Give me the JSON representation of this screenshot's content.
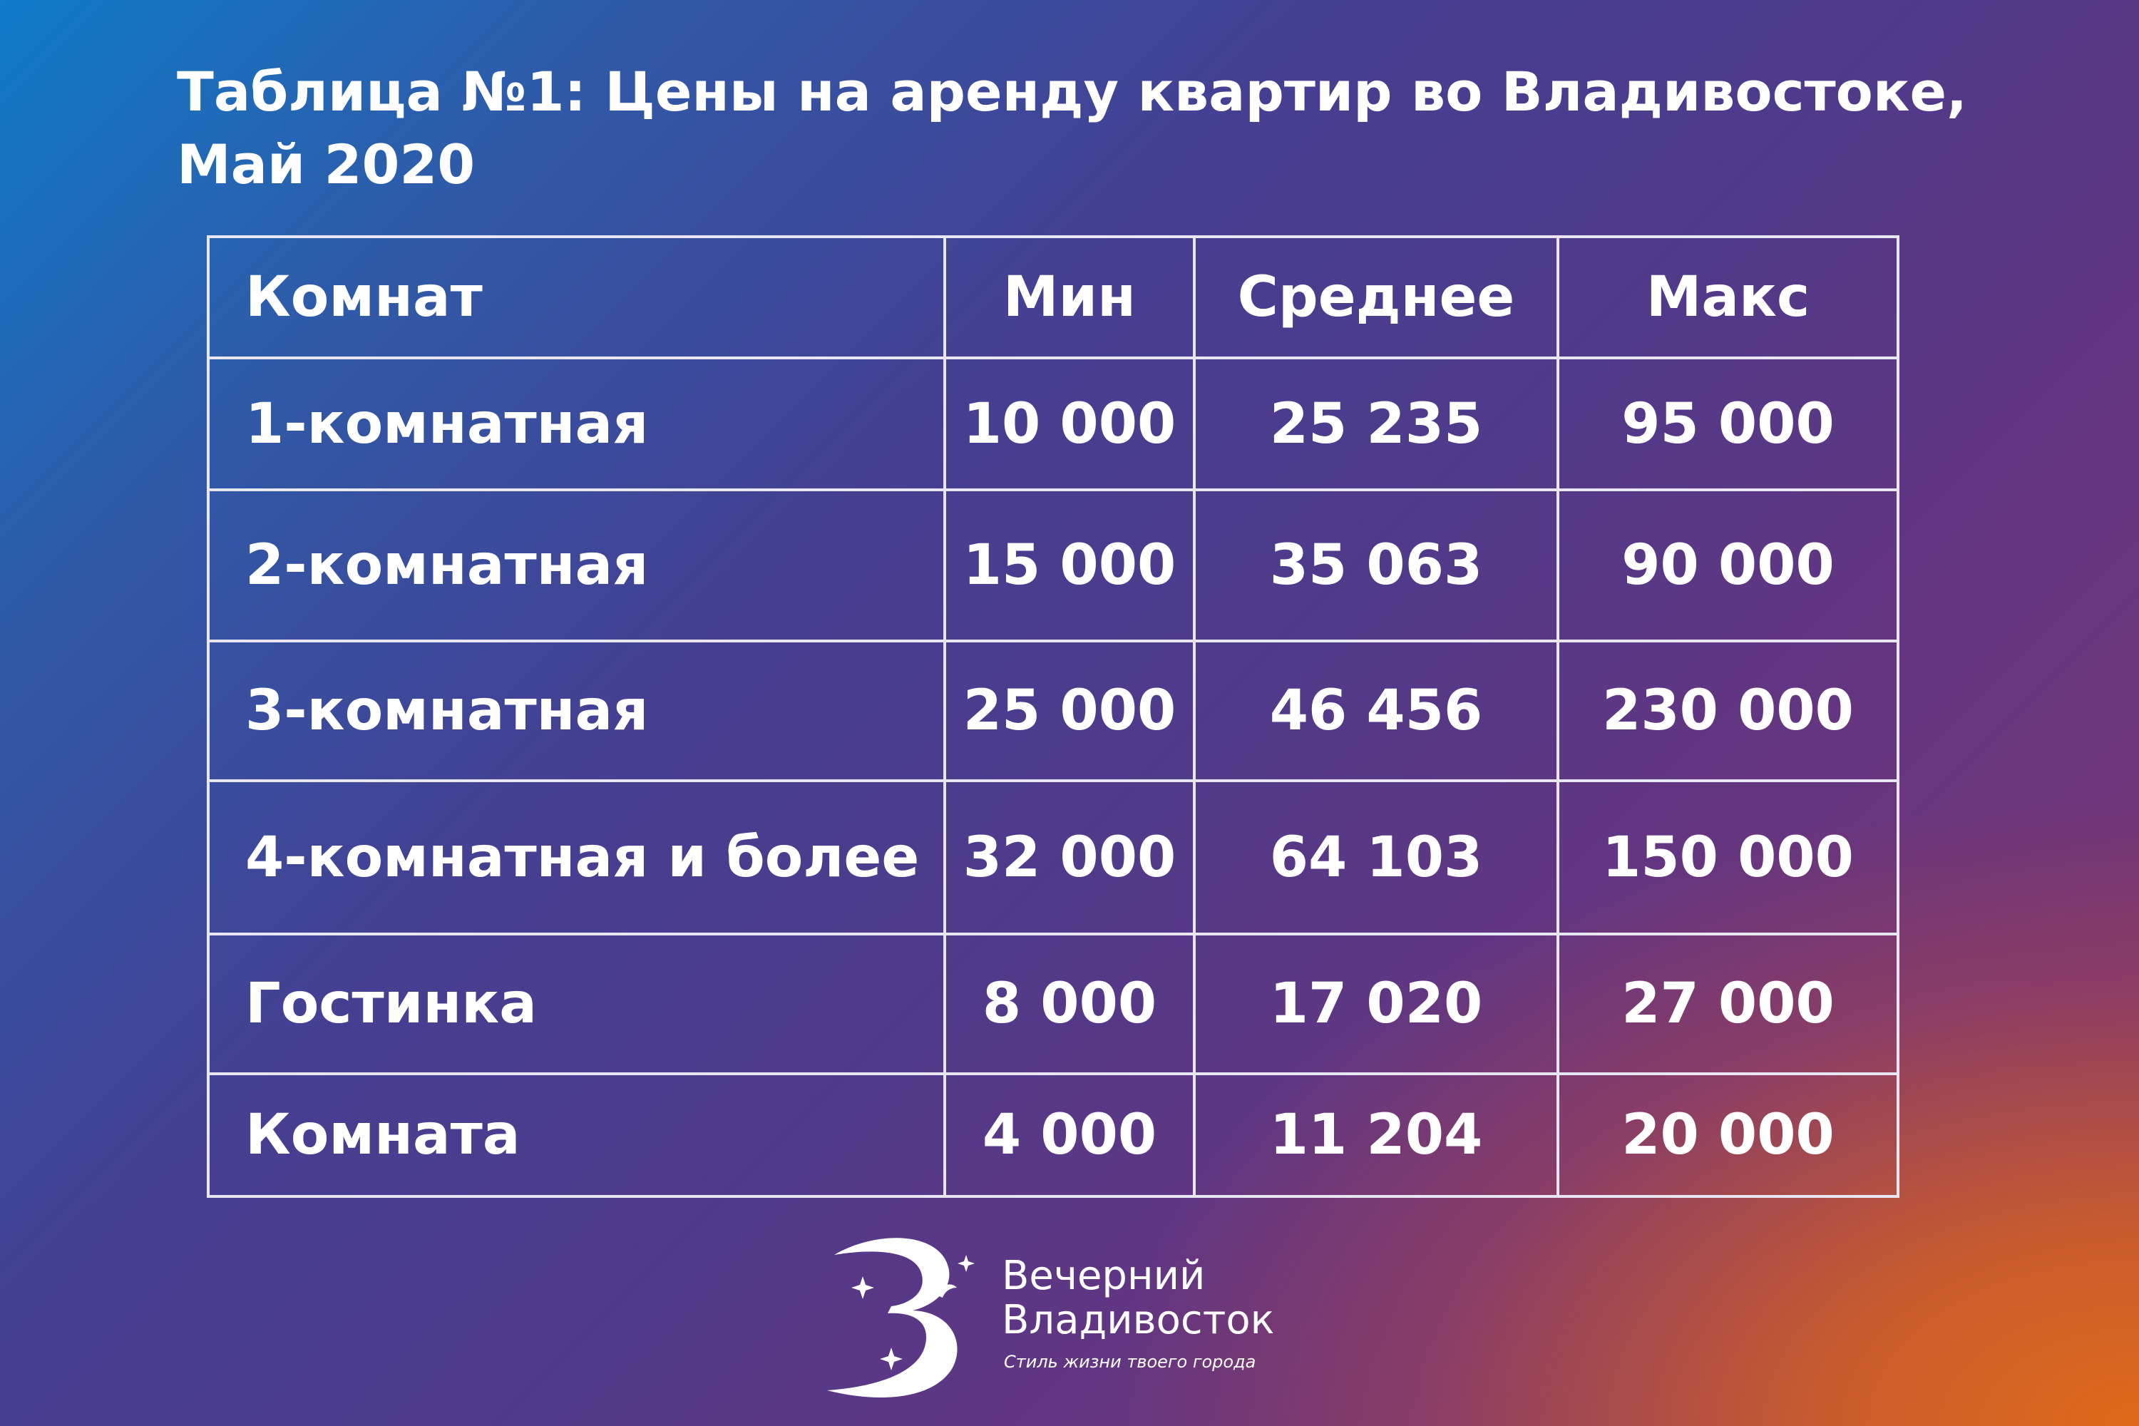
{
  "title": "Таблица №1: Цены на аренду квартир во Владивостоке, Май 2020",
  "chart_data": {
    "type": "table",
    "title": "Таблица №1: Цены на аренду квартир во Владивостоке, Май 2020",
    "columns": [
      "Комнат",
      "Мин",
      "Среднее",
      "Макс"
    ],
    "rows": [
      {
        "name": "1-комнатная",
        "min": "10 000",
        "avg": "25 235",
        "max": "95 000"
      },
      {
        "name": "2-комнатная",
        "min": "15 000",
        "avg": "35 063",
        "max": "90 000"
      },
      {
        "name": "3-комнатная",
        "min": "25 000",
        "avg": "46 456",
        "max": "230 000"
      },
      {
        "name": "4-комнатная и более",
        "min": "32 000",
        "avg": "64 103",
        "max": "150 000"
      },
      {
        "name": "Гостинка",
        "min": "8 000",
        "avg": "17 020",
        "max": "27 000"
      },
      {
        "name": "Комната",
        "min": "4 000",
        "avg": "11 204",
        "max": "20 000"
      }
    ]
  },
  "logo": {
    "line1": "Вечерний",
    "line2": "Владивосток",
    "tagline": "Стиль жизни твоего города"
  },
  "colors": {
    "gradient_top_left": "#0f7bc9",
    "gradient_mid": "#503a8a",
    "gradient_bottom_right": "#e06a1a",
    "grid_line": "#e9e6f3"
  }
}
